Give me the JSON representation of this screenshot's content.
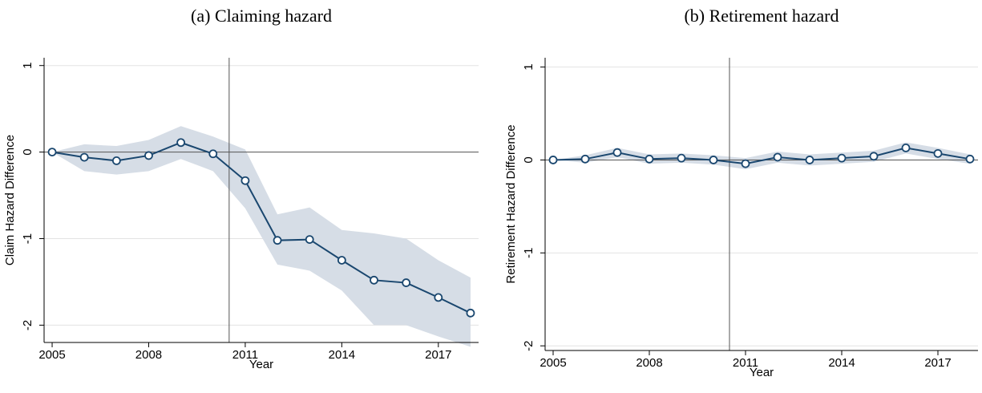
{
  "chart_data": [
    {
      "type": "line",
      "title": "(a) Claiming hazard",
      "x_label": "Year",
      "y_label": "Claim Hazard Difference",
      "x": [
        2005,
        2006,
        2007,
        2008,
        2009,
        2010,
        2011,
        2012,
        2013,
        2014,
        2015,
        2016,
        2017,
        2018
      ],
      "values": [
        0,
        -0.06,
        -0.1,
        -0.04,
        0.11,
        -0.02,
        -0.33,
        -1.02,
        -1.01,
        -1.25,
        -1.48,
        -1.51,
        -1.68,
        -1.86
      ],
      "lower": [
        0,
        -0.22,
        -0.26,
        -0.22,
        -0.08,
        -0.22,
        -0.65,
        -1.3,
        -1.37,
        -1.6,
        -2.0,
        -2.0,
        -2.13,
        -2.25
      ],
      "upper": [
        0,
        0.09,
        0.07,
        0.14,
        0.3,
        0.18,
        0.03,
        -0.72,
        -0.64,
        -0.9,
        -0.94,
        -1.0,
        -1.25,
        -1.45
      ],
      "color": "#1a476f",
      "band_color": "#d6dde6",
      "xlim": [
        2004.75,
        2018.25
      ],
      "xticks": [
        2005,
        2008,
        2011,
        2014,
        2017
      ],
      "ylim": [
        -2.2,
        1.09
      ],
      "yticks": [
        1,
        0,
        -1,
        -2
      ],
      "grid": true,
      "hline": 0,
      "vline": 2010.5
    },
    {
      "type": "line",
      "title": "(b) Retirement hazard",
      "x_label": "Year",
      "y_label": "Retirement Hazard Difference",
      "x": [
        2005,
        2006,
        2007,
        2008,
        2009,
        2010,
        2011,
        2012,
        2013,
        2014,
        2015,
        2016,
        2017,
        2018
      ],
      "values": [
        0,
        0.01,
        0.08,
        0.01,
        0.02,
        0,
        -0.04,
        0.03,
        0,
        0.02,
        0.04,
        0.13,
        0.07,
        0.01
      ],
      "lower": [
        0,
        -0.03,
        0.03,
        -0.04,
        -0.03,
        -0.05,
        -0.1,
        -0.03,
        -0.06,
        -0.04,
        -0.02,
        0.07,
        0.01,
        -0.04
      ],
      "upper": [
        0,
        0.05,
        0.13,
        0.06,
        0.07,
        0.05,
        0.02,
        0.09,
        0.06,
        0.08,
        0.1,
        0.19,
        0.13,
        0.06
      ],
      "color": "#1a476f",
      "band_color": "#d6dde6",
      "xlim": [
        2004.75,
        2018.25
      ],
      "xticks": [
        2005,
        2008,
        2011,
        2014,
        2017
      ],
      "ylim": [
        -2.05,
        1.1
      ],
      "yticks": [
        1,
        0,
        -1,
        -2
      ],
      "grid": true,
      "hline": 0,
      "vline": 2010.5
    }
  ]
}
